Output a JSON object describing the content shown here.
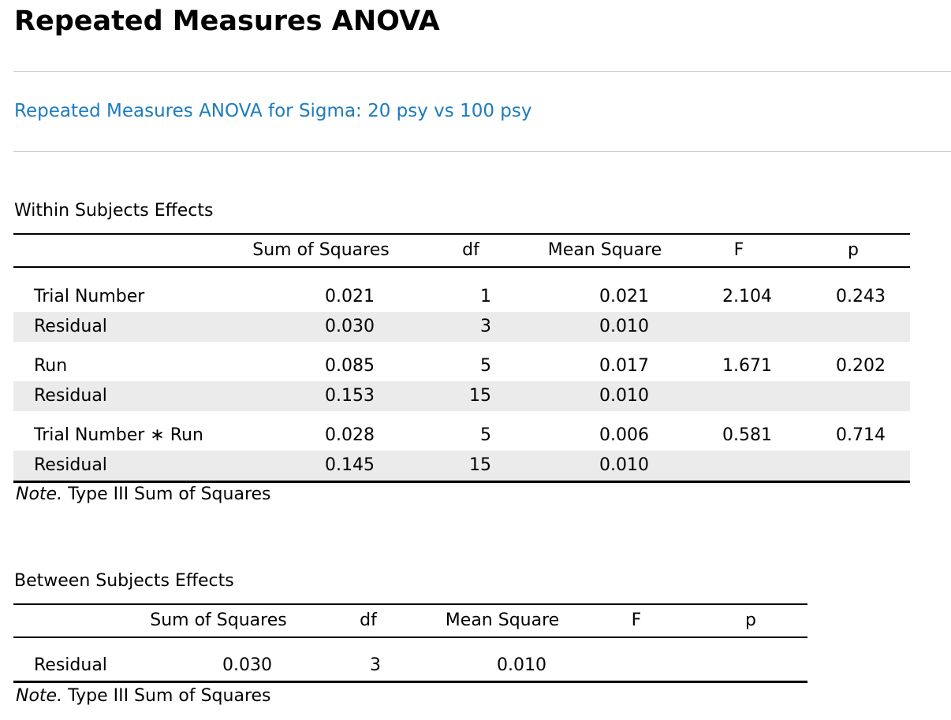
{
  "page_title": "Repeated Measures ANOVA",
  "analysis_title": "Repeated Measures ANOVA for Sigma: 20 psy vs 100 psy",
  "within": {
    "title": "Within Subjects Effects",
    "headers": {
      "sum_of_squares": "Sum of Squares",
      "df": "df",
      "mean_square": "Mean Square",
      "f": "F",
      "p": "p"
    },
    "rows": [
      {
        "term": "Trial Number",
        "ss": "0.021",
        "df": "1",
        "ms": "0.021",
        "f": "2.104",
        "p": "0.243"
      },
      {
        "term": "Residual",
        "ss": "0.030",
        "df": "3",
        "ms": "0.010",
        "f": "",
        "p": ""
      },
      {
        "term": "Run",
        "ss": "0.085",
        "df": "5",
        "ms": "0.017",
        "f": "1.671",
        "p": "0.202"
      },
      {
        "term": "Residual",
        "ss": "0.153",
        "df": "15",
        "ms": "0.010",
        "f": "",
        "p": ""
      },
      {
        "term": "Trial Number ∗ Run",
        "ss": "0.028",
        "df": "5",
        "ms": "0.006",
        "f": "0.581",
        "p": "0.714"
      },
      {
        "term": "Residual",
        "ss": "0.145",
        "df": "15",
        "ms": "0.010",
        "f": "",
        "p": ""
      }
    ],
    "note_label": "Note.",
    "note_text": " Type III Sum of Squares"
  },
  "between": {
    "title": "Between Subjects Effects",
    "headers": {
      "sum_of_squares": "Sum of Squares",
      "df": "df",
      "mean_square": "Mean Square",
      "f": "F",
      "p": "p"
    },
    "rows": [
      {
        "term": "Residual",
        "ss": "0.030",
        "df": "3",
        "ms": "0.010",
        "f": "",
        "p": ""
      }
    ],
    "note_label": "Note.",
    "note_text": " Type III Sum of Squares"
  }
}
